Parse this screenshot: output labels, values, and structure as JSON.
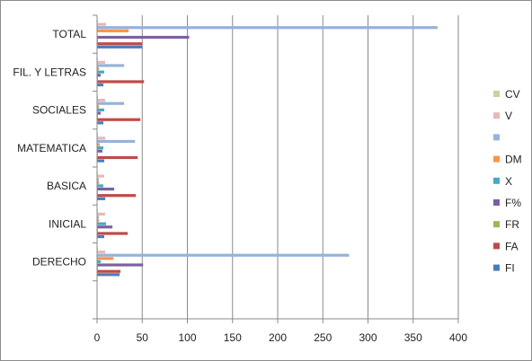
{
  "chart_data": {
    "type": "bar",
    "orientation": "horizontal",
    "categories": [
      "DERECHO",
      "INICIAL",
      "BASICA",
      "MATEMATICA",
      "SOCIALES",
      "FIL. Y LETRAS",
      "TOTAL"
    ],
    "series": [
      {
        "name": "FI",
        "color": "#4a7ebb",
        "values": [
          25,
          8,
          9,
          8,
          7,
          7,
          50
        ]
      },
      {
        "name": "FA",
        "color": "#be4b48",
        "values": [
          26,
          34,
          43,
          45,
          48,
          52,
          50
        ]
      },
      {
        "name": "FR",
        "color": "#98b954",
        "values": [
          1,
          1,
          1,
          1,
          1,
          1,
          1
        ]
      },
      {
        "name": "F%",
        "color": "#7d60a0",
        "values": [
          51,
          17,
          19,
          6,
          4,
          4,
          102
        ]
      },
      {
        "name": "X",
        "color": "#46aac5",
        "values": [
          4,
          10,
          7,
          7,
          8,
          8,
          0
        ]
      },
      {
        "name": "DM",
        "color": "#f79646",
        "values": [
          18,
          2,
          2,
          3,
          2,
          2,
          35
        ]
      },
      {
        "name": "",
        "color": "#95b3d7",
        "values": [
          279,
          2,
          2,
          42,
          30,
          30,
          377
        ]
      },
      {
        "name": "V",
        "color": "#e6b9b8",
        "values": [
          9,
          9,
          8,
          9,
          9,
          9,
          10
        ]
      },
      {
        "name": "CV",
        "color": "#c3d69b",
        "values": [
          1,
          1,
          1,
          1,
          1,
          1,
          1
        ]
      }
    ],
    "x_ticks": [
      "0",
      "50",
      "100",
      "150",
      "200",
      "250",
      "300",
      "350",
      "400"
    ],
    "xlim": [
      0,
      400
    ],
    "grid": true,
    "legend_position": "right"
  }
}
